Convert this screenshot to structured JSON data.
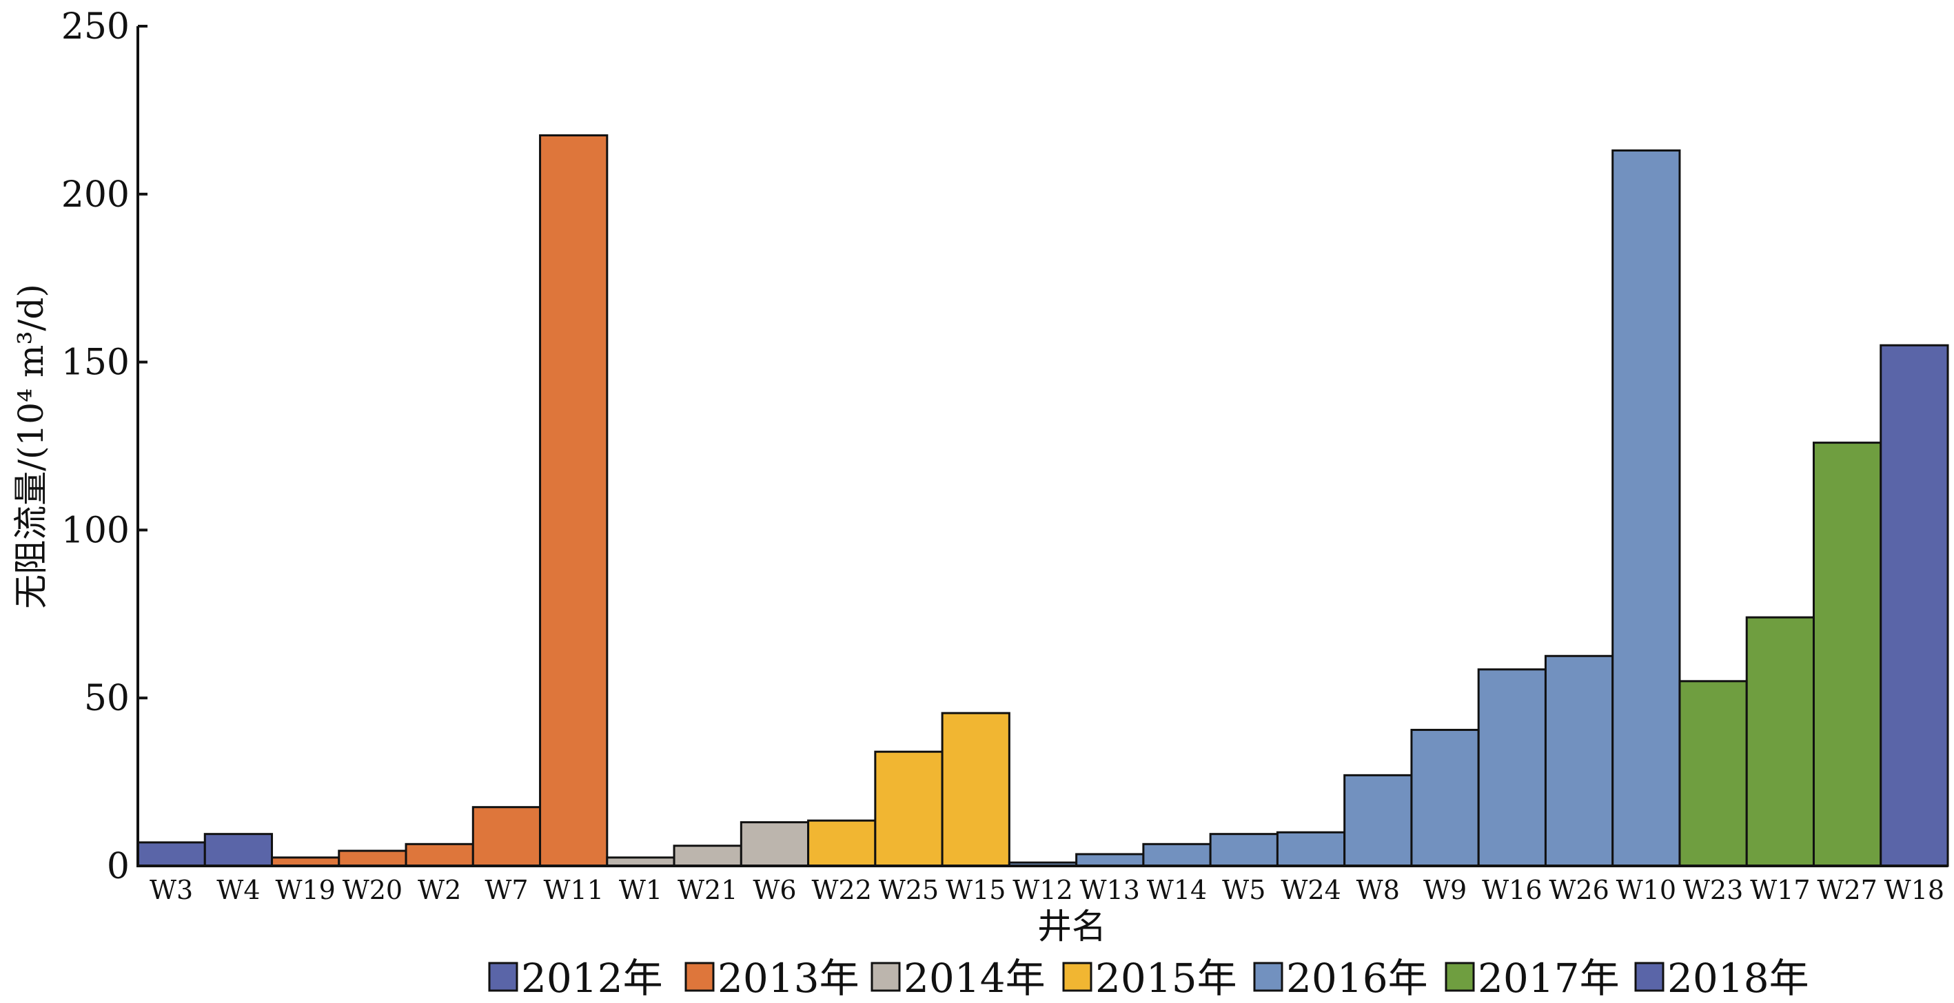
{
  "chart_data": {
    "type": "bar",
    "title": "",
    "xlabel": "井名",
    "ylabel": "无阻流量/(10⁴ m³/d)",
    "ylim": [
      0,
      250
    ],
    "yticks": [
      0,
      50,
      100,
      150,
      200,
      250
    ],
    "grid": false,
    "legend_placement": "bottom",
    "categories": [
      "W3",
      "W4",
      "W19",
      "W20",
      "W2",
      "W7",
      "W11",
      "W1",
      "W21",
      "W6",
      "W22",
      "W25",
      "W15",
      "W12",
      "W13",
      "W14",
      "W5",
      "W24",
      "W8",
      "W9",
      "W16",
      "W26",
      "W10",
      "W23",
      "W17",
      "W27",
      "W18"
    ],
    "values": [
      7,
      9.5,
      2.5,
      4.5,
      6.5,
      17.5,
      217.5,
      2.5,
      6,
      13,
      13.5,
      34,
      45.5,
      1,
      3.5,
      6.5,
      9.5,
      10,
      27,
      40.5,
      58.5,
      62.5,
      213,
      55,
      74,
      126,
      155
    ],
    "groups": [
      "2012年",
      "2012年",
      "2013年",
      "2013年",
      "2013年",
      "2013年",
      "2013年",
      "2014年",
      "2014年",
      "2014年",
      "2015年",
      "2015年",
      "2015年",
      "2016年",
      "2016年",
      "2016年",
      "2016年",
      "2016年",
      "2016年",
      "2016年",
      "2016年",
      "2016年",
      "2016年",
      "2017年",
      "2017年",
      "2017年",
      "2018年"
    ],
    "legend": [
      {
        "name": "2012年",
        "color": "#5a65a8"
      },
      {
        "name": "2013年",
        "color": "#de763b"
      },
      {
        "name": "2014年",
        "color": "#bcb5ad"
      },
      {
        "name": "2015年",
        "color": "#f1b632"
      },
      {
        "name": "2016年",
        "color": "#7291bf"
      },
      {
        "name": "2017年",
        "color": "#6f9e40"
      },
      {
        "name": "2018年",
        "color": "#5a65a8"
      }
    ]
  }
}
